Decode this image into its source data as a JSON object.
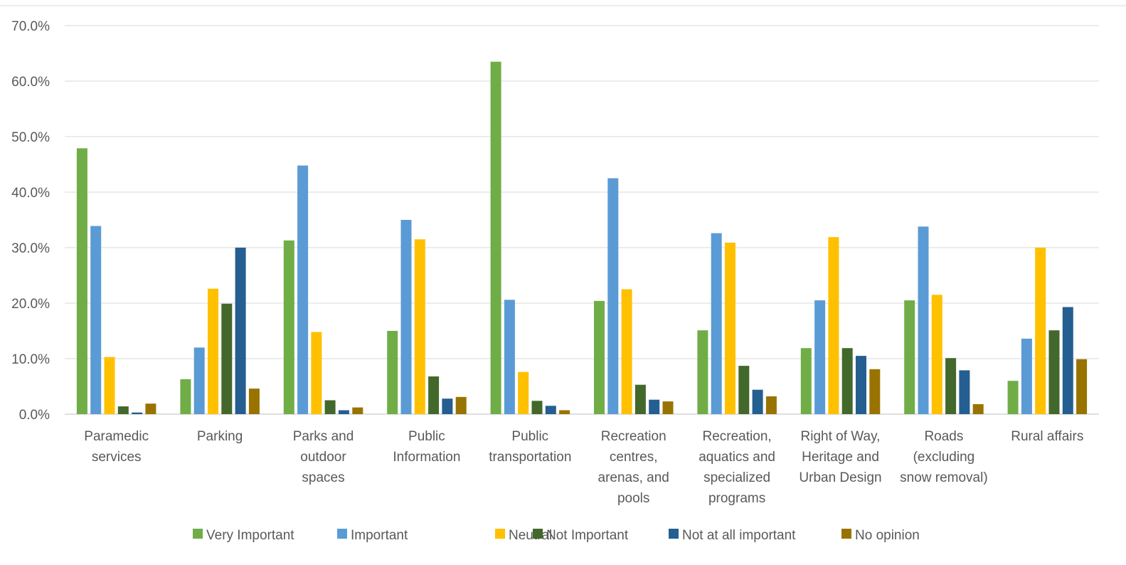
{
  "chart_data": {
    "type": "bar",
    "title": "",
    "xlabel": "",
    "ylabel": "",
    "ylim": [
      0,
      70
    ],
    "y_ticks": [
      "0.0%",
      "10.0%",
      "20.0%",
      "30.0%",
      "40.0%",
      "50.0%",
      "60.0%",
      "70.0%"
    ],
    "grid": true,
    "legend_position": "bottom",
    "categories": [
      [
        "Paramedic",
        "services"
      ],
      [
        "Parking"
      ],
      [
        "Parks and",
        "outdoor",
        "spaces"
      ],
      [
        "Public",
        "Information"
      ],
      [
        "Public",
        "transportation"
      ],
      [
        "Recreation",
        "centres,",
        "arenas, and",
        "pools"
      ],
      [
        "Recreation,",
        "aquatics and",
        "specialized",
        "programs"
      ],
      [
        "Right of Way,",
        "Heritage and",
        "Urban Design"
      ],
      [
        "Roads",
        "(excluding",
        "snow removal)"
      ],
      [
        "Rural affairs"
      ]
    ],
    "series": [
      {
        "name": "Very Important",
        "color": "#70AD47",
        "values": [
          47.9,
          6.3,
          31.3,
          15.0,
          63.5,
          20.4,
          15.1,
          11.9,
          20.5,
          6.0
        ]
      },
      {
        "name": "Important",
        "color": "#5B9BD5",
        "values": [
          33.9,
          12.0,
          44.8,
          35.0,
          20.6,
          42.5,
          32.6,
          20.5,
          33.8,
          13.6
        ]
      },
      {
        "name": "Neutral",
        "color": "#FFC000",
        "values": [
          10.3,
          22.6,
          14.8,
          31.5,
          7.6,
          22.5,
          30.9,
          31.9,
          21.5,
          30.0
        ]
      },
      {
        "name": "Not Important",
        "color": "#43682B",
        "values": [
          1.4,
          19.9,
          2.5,
          6.8,
          2.4,
          5.3,
          8.7,
          11.9,
          10.1,
          15.1
        ]
      },
      {
        "name": "Not at all important",
        "color": "#255E91",
        "values": [
          0.3,
          30.0,
          0.7,
          2.8,
          1.5,
          2.6,
          4.4,
          10.5,
          7.9,
          19.3
        ]
      },
      {
        "name": "No opinion",
        "color": "#997300",
        "values": [
          1.9,
          4.6,
          1.2,
          3.1,
          0.7,
          2.3,
          3.2,
          8.1,
          1.8,
          9.9
        ]
      }
    ]
  }
}
